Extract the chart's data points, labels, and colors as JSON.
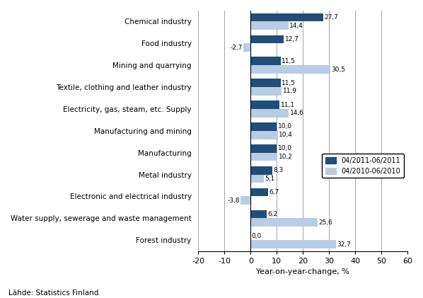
{
  "categories": [
    "Chemical industry",
    "Food industry",
    "Mining and quarrying",
    "Textile, clothing and leather industry",
    "Electricity, gas, steam, etc. Supply",
    "Manufacturing and mining",
    "Manufacturing",
    "Metal industry",
    "Electronic and electrical industry",
    "Water supply, sewerage and waste management",
    "Forest industry"
  ],
  "series1_label": "04/2011-06/2011",
  "series2_label": "04/2010-06/2010",
  "series1_values": [
    27.7,
    12.7,
    11.5,
    11.5,
    11.1,
    10.0,
    10.0,
    8.3,
    6.7,
    6.2,
    0.0
  ],
  "series2_values": [
    14.4,
    -2.7,
    30.5,
    11.9,
    14.6,
    10.4,
    10.2,
    5.1,
    -3.8,
    25.6,
    32.7
  ],
  "color1": "#1F4E79",
  "color2": "#B8CCE4",
  "xlim": [
    -20,
    60
  ],
  "xticks": [
    -20,
    -10,
    0,
    10,
    20,
    30,
    40,
    50,
    60
  ],
  "xlabel": "Year-on-year-change, %",
  "footer": "Lähde: Statistics Finland",
  "bar_height": 0.38
}
